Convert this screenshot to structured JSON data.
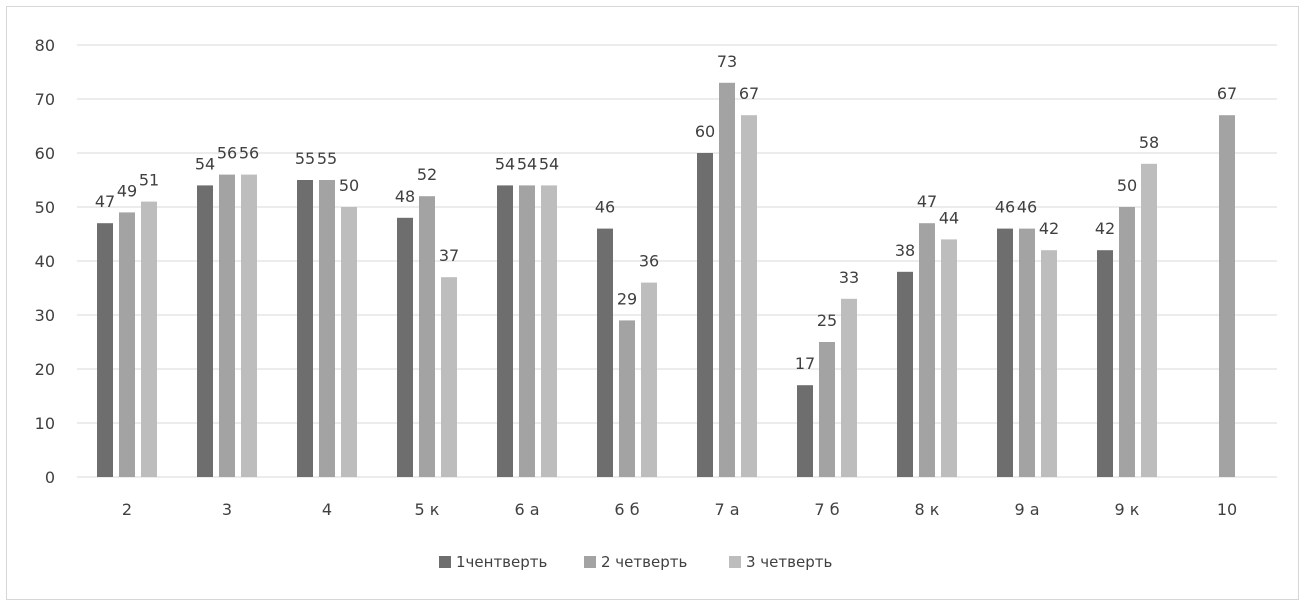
{
  "chart_data": {
    "type": "bar",
    "title": "",
    "xlabel": "",
    "ylabel": "",
    "categories": [
      "2",
      "3",
      "4",
      "5 к",
      "6 а",
      "6 б",
      "7 а",
      "7 б",
      "8 к",
      "9 а",
      "9 к",
      "10"
    ],
    "ylim": [
      0,
      80
    ],
    "yticks": [
      "0",
      "10",
      "20",
      "30",
      "40",
      "50",
      "60",
      "70",
      "80"
    ],
    "grid": true,
    "legend_position": "bottom",
    "series": [
      {
        "name": "1чентверть",
        "color": "#6e6e6e",
        "values": [
          47,
          54,
          55,
          48,
          54,
          46,
          60,
          17,
          38,
          46,
          42,
          null
        ],
        "labels": [
          "47",
          "54",
          "55",
          "48",
          "54",
          "46",
          "60",
          "17",
          "38",
          "46",
          "42",
          ""
        ]
      },
      {
        "name": "2 четверть",
        "color": "#a3a3a3",
        "values": [
          49,
          56,
          55,
          52,
          54,
          29,
          73,
          25,
          47,
          46,
          50,
          67
        ],
        "labels": [
          "49",
          "56",
          "55",
          "52",
          "54",
          "29",
          "73",
          "25",
          "47",
          "46",
          "50",
          "67"
        ]
      },
      {
        "name": "3 четверть",
        "color": "#bdbdbd",
        "values": [
          51,
          56,
          50,
          37,
          54,
          36,
          67,
          33,
          44,
          42,
          58,
          null
        ],
        "labels": [
          "51",
          "56",
          "50",
          "37",
          "54",
          "36",
          "67",
          "33",
          "44",
          "42",
          "58",
          ""
        ]
      }
    ]
  }
}
